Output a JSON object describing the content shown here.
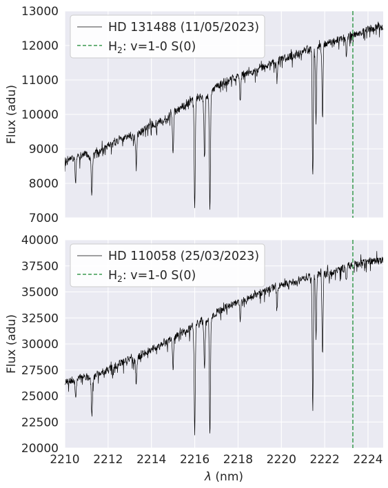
{
  "colors": {
    "background": "#eaeaf2",
    "grid": "#ffffff",
    "spectrum": "#000000",
    "h2_line": "#55a868",
    "legend_bg": "#ffffff"
  },
  "chart_data": [
    {
      "type": "line",
      "series": [
        {
          "name": "HD 131488 (11/05/2023)",
          "line_style": "solid",
          "x": [
            2210.0,
            2210.25,
            2210.5,
            2210.75,
            2211.0,
            2211.2,
            2211.5,
            2211.75,
            2212.0,
            2212.25,
            2212.5,
            2212.75,
            2213.0,
            2213.25,
            2213.5,
            2213.75,
            2214.0,
            2214.25,
            2214.5,
            2214.75,
            2215.0,
            2215.25,
            2215.5,
            2215.75,
            2216.0,
            2216.25,
            2216.5,
            2216.75,
            2217.0,
            2217.25,
            2217.5,
            2217.75,
            2218.0,
            2218.25,
            2218.5,
            2218.75,
            2219.0,
            2219.25,
            2219.5,
            2219.75,
            2220.0,
            2220.25,
            2220.5,
            2220.75,
            2221.0,
            2221.25,
            2221.5,
            2221.75,
            2222.0,
            2222.25,
            2222.5,
            2222.75,
            2223.0,
            2223.25,
            2223.5,
            2223.75,
            2224.0,
            2224.25,
            2224.5,
            2224.7
          ],
          "y": [
            8600,
            8700,
            8750,
            8800,
            8850,
            8700,
            8950,
            9000,
            9100,
            9150,
            9250,
            9300,
            9400,
            9350,
            9500,
            9600,
            9700,
            9750,
            9850,
            9900,
            10050,
            10150,
            10250,
            10350,
            10450,
            10500,
            10500,
            10600,
            10800,
            10900,
            11000,
            11050,
            11100,
            11150,
            11200,
            11250,
            11350,
            11400,
            11500,
            11550,
            11600,
            11650,
            11700,
            11750,
            11850,
            11900,
            11950,
            12000,
            12050,
            12100,
            12150,
            12200,
            12250,
            12300,
            12350,
            12400,
            12450,
            12500,
            12550,
            12500
          ]
        },
        {
          "name": "H$_2$: v=1-0 S(0)",
          "line_style": "dashed",
          "x_position": 2223.3
        }
      ],
      "absorption_lines": [
        {
          "x": 2210.5,
          "depth": 700
        },
        {
          "x": 2211.25,
          "depth": 1100
        },
        {
          "x": 2213.3,
          "depth": 900
        },
        {
          "x": 2215.0,
          "depth": 1200
        },
        {
          "x": 2216.0,
          "depth": 3200
        },
        {
          "x": 2216.45,
          "depth": 1800
        },
        {
          "x": 2216.7,
          "depth": 3400
        },
        {
          "x": 2218.1,
          "depth": 700
        },
        {
          "x": 2219.8,
          "depth": 600
        },
        {
          "x": 2221.45,
          "depth": 3800
        },
        {
          "x": 2221.6,
          "depth": 2200
        },
        {
          "x": 2221.9,
          "depth": 2100
        },
        {
          "x": 2223.0,
          "depth": 500
        }
      ],
      "xlim": [
        2210,
        2224.7
      ],
      "ylim": [
        7000,
        13000
      ],
      "ylabel": "Flux (adu)",
      "xlabel": "",
      "y_ticks": [
        7000,
        8000,
        9000,
        10000,
        11000,
        12000,
        13000
      ],
      "x_ticks": [
        2210,
        2212,
        2214,
        2216,
        2218,
        2220,
        2222,
        2224
      ],
      "show_x_tick_labels": false,
      "grid": true,
      "legend_position": "upper-left"
    },
    {
      "type": "line",
      "series": [
        {
          "name": "HD 110058 (25/03/2023)",
          "line_style": "solid",
          "x": [
            2210.0,
            2210.25,
            2210.5,
            2210.75,
            2211.0,
            2211.2,
            2211.5,
            2211.75,
            2212.0,
            2212.25,
            2212.5,
            2212.75,
            2213.0,
            2213.25,
            2213.5,
            2213.75,
            2214.0,
            2214.25,
            2214.5,
            2214.75,
            2215.0,
            2215.25,
            2215.5,
            2215.75,
            2216.0,
            2216.25,
            2216.5,
            2216.75,
            2217.0,
            2217.25,
            2217.5,
            2217.75,
            2218.0,
            2218.25,
            2218.5,
            2218.75,
            2219.0,
            2219.25,
            2219.5,
            2219.75,
            2220.0,
            2220.25,
            2220.5,
            2220.75,
            2221.0,
            2221.25,
            2221.5,
            2221.75,
            2222.0,
            2222.25,
            2222.5,
            2222.75,
            2223.0,
            2223.25,
            2223.5,
            2223.75,
            2224.0,
            2224.25,
            2224.5,
            2224.7
          ],
          "y": [
            26200,
            26500,
            26600,
            26800,
            26900,
            26500,
            27100,
            27300,
            27600,
            27800,
            28100,
            28300,
            28600,
            28400,
            28900,
            29200,
            29500,
            29700,
            30000,
            30200,
            30600,
            30900,
            31200,
            31500,
            31900,
            32100,
            32200,
            32500,
            33000,
            33300,
            33600,
            33800,
            34000,
            34200,
            34400,
            34600,
            34900,
            35100,
            35300,
            35500,
            35700,
            35800,
            35900,
            36000,
            36200,
            36400,
            36600,
            36700,
            36800,
            36900,
            37000,
            37200,
            37400,
            37600,
            37700,
            37800,
            37900,
            38000,
            38100,
            38000
          ]
        },
        {
          "name": "H$_2$: v=1-0 S(0)",
          "line_style": "dashed",
          "x_position": 2223.3
        }
      ],
      "absorption_lines": [
        {
          "x": 2210.5,
          "depth": 2000
        },
        {
          "x": 2211.25,
          "depth": 3500
        },
        {
          "x": 2213.3,
          "depth": 2500
        },
        {
          "x": 2215.0,
          "depth": 3000
        },
        {
          "x": 2216.0,
          "depth": 10500
        },
        {
          "x": 2216.45,
          "depth": 4500
        },
        {
          "x": 2216.7,
          "depth": 11000
        },
        {
          "x": 2218.1,
          "depth": 2000
        },
        {
          "x": 2219.8,
          "depth": 1800
        },
        {
          "x": 2221.45,
          "depth": 12800
        },
        {
          "x": 2221.6,
          "depth": 6000
        },
        {
          "x": 2221.9,
          "depth": 8000
        },
        {
          "x": 2223.0,
          "depth": 1500
        }
      ],
      "xlim": [
        2210,
        2224.7
      ],
      "ylim": [
        20000,
        40000
      ],
      "ylabel": "Flux (adu)",
      "xlabel": "λ (nm)",
      "y_ticks": [
        20000,
        22500,
        25000,
        27500,
        30000,
        32500,
        35000,
        37500,
        40000
      ],
      "x_ticks": [
        2210,
        2212,
        2214,
        2216,
        2218,
        2220,
        2222,
        2224
      ],
      "show_x_tick_labels": true,
      "grid": true,
      "legend_position": "upper-left"
    }
  ]
}
